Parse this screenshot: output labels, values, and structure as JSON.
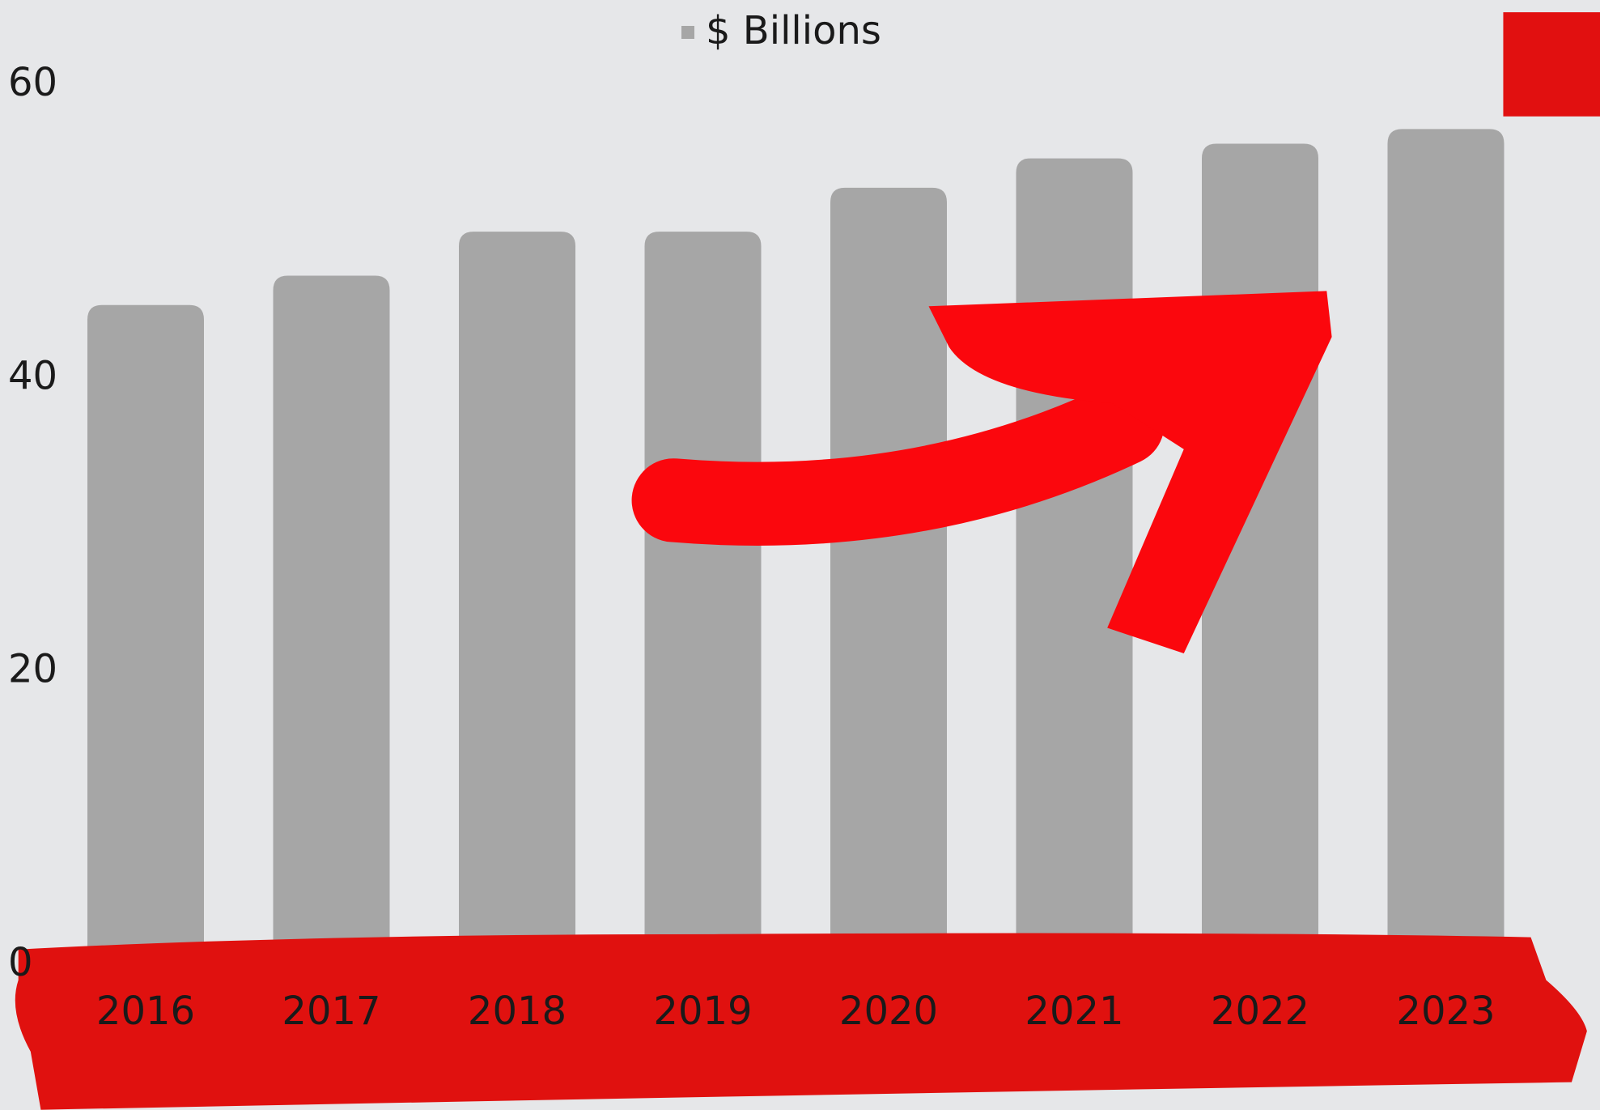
{
  "chart_data": {
    "type": "bar",
    "categories": [
      "2016",
      "2017",
      "2018",
      "2019",
      "2020",
      "2021",
      "2022",
      "2023"
    ],
    "series": [
      {
        "name": "$ Billions",
        "color": "#a6a6a6",
        "values": [
          45,
          47,
          50,
          50,
          53,
          55,
          56,
          57
        ]
      }
    ],
    "ylim": [
      0,
      60
    ],
    "yticks": [
      0,
      20,
      40,
      60
    ],
    "grid": false,
    "legend": "top"
  }
}
